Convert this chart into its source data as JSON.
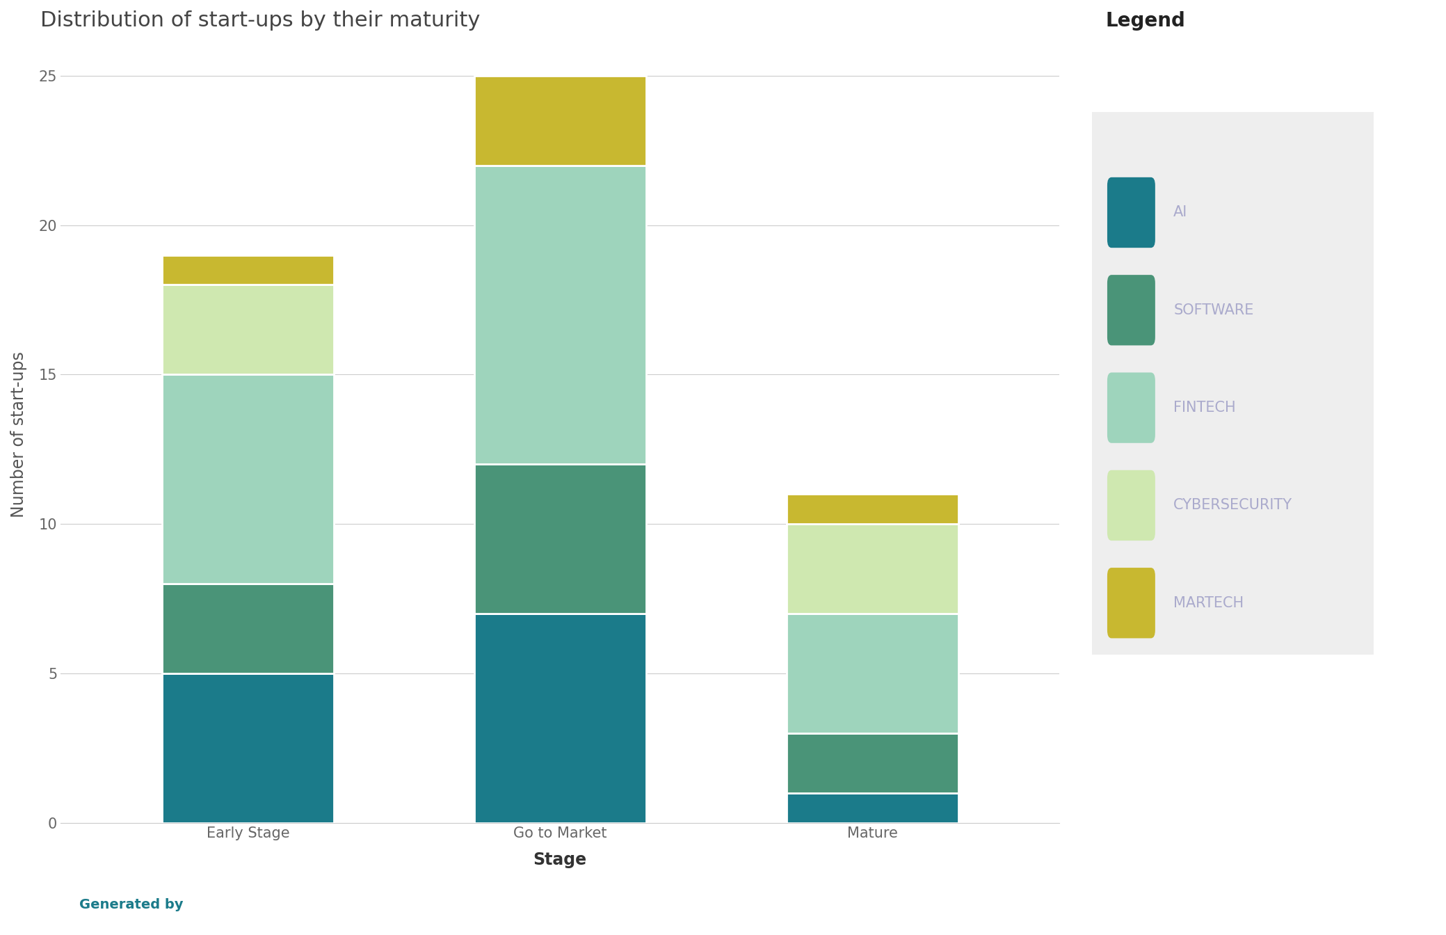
{
  "title": "Distribution of start-ups by their maturity",
  "xlabel": "Stage",
  "ylabel": "Number of start-ups",
  "categories": [
    "Early Stage",
    "Go to Market",
    "Mature"
  ],
  "series": {
    "AI": [
      5,
      7,
      1
    ],
    "SOFTWARE": [
      3,
      5,
      2
    ],
    "FINTECH": [
      7,
      10,
      4
    ],
    "CYBERSECURITY": [
      3,
      0,
      3
    ],
    "MARTECH": [
      1,
      3,
      1
    ]
  },
  "colors": {
    "AI": "#1b7b8a",
    "SOFTWARE": "#4a9478",
    "FINTECH": "#9ed4bc",
    "CYBERSECURITY": "#cfe8b0",
    "MARTECH": "#c8b830"
  },
  "ylim": [
    0,
    26
  ],
  "yticks": [
    0,
    5,
    10,
    15,
    20,
    25
  ],
  "legend_title": "Legend",
  "background_color": "#ffffff",
  "bar_edge_color": "#ffffff",
  "bar_width": 0.55,
  "grid_color": "#cccccc",
  "title_fontsize": 22,
  "axis_label_fontsize": 17,
  "tick_fontsize": 15,
  "legend_fontsize": 15,
  "legend_title_fontsize": 20,
  "legend_label_color": "#aaaacc",
  "footer_color": "#1b7b8a",
  "footer_text": "Generated by"
}
